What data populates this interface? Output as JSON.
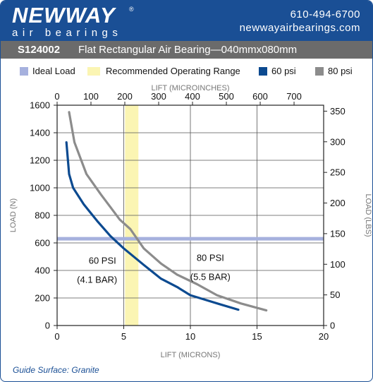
{
  "header": {
    "brand_name": "NEWWAY",
    "brand_reg": "®",
    "brand_tagline": "air bearings",
    "phone": "610-494-6700",
    "website": "newwayairbearings.com"
  },
  "title": {
    "code": "S124002",
    "description": "Flat Rectangular Air Bearing—040mmx080mm"
  },
  "footnote": "Guide Surface: Granite",
  "colors": {
    "brand_blue": "#1a4f95",
    "ideal_load": "#a6b1de",
    "recommended_range": "#fbf5b3",
    "psi60": "#0c4a90",
    "psi80": "#8c8c8c"
  },
  "chart_data": {
    "type": "line",
    "legend": {
      "placement": "top",
      "items": [
        "Ideal Load",
        "Recommended Operating Range",
        "60 psi",
        "80 psi"
      ]
    },
    "x_bottom": {
      "label": "LIFT (MICRONS)",
      "range": [
        0,
        20
      ],
      "ticks": [
        0,
        5,
        10,
        15,
        20
      ]
    },
    "x_top": {
      "label": "LIFT (MICROINCHES)",
      "range": [
        0,
        787.4
      ],
      "ticks": [
        0,
        100,
        200,
        300,
        400,
        500,
        600,
        700
      ]
    },
    "y_left": {
      "label": "LOAD (N)",
      "range": [
        0,
        1600
      ],
      "ticks": [
        0,
        200,
        400,
        600,
        800,
        1000,
        1200,
        1400,
        1600
      ]
    },
    "y_right": {
      "label": "LOAD (LBS)",
      "range": [
        0,
        359.7
      ],
      "ticks": [
        0,
        50,
        100,
        150,
        200,
        250,
        300,
        350
      ]
    },
    "grid": true,
    "ideal_load_n": 630,
    "recommended_range_microns": [
      5.1,
      6.1
    ],
    "series": [
      {
        "name": "60 psi",
        "x": [
          0.7,
          0.9,
          1.2,
          2.0,
          3.0,
          4.0,
          5.0,
          6.5,
          7.8,
          9.0,
          10.0,
          11.0,
          12.2,
          13.6
        ],
        "y": [
          1330,
          1100,
          1000,
          880,
          760,
          650,
          560,
          440,
          340,
          280,
          220,
          190,
          155,
          115
        ]
      },
      {
        "name": "80 psi",
        "x": [
          0.9,
          1.3,
          2.2,
          3.3,
          4.0,
          4.7,
          5.5,
          6.5,
          7.8,
          9.0,
          10.5,
          12.0,
          13.8,
          15.7
        ],
        "y": [
          1550,
          1330,
          1100,
          950,
          860,
          770,
          700,
          560,
          450,
          370,
          300,
          220,
          160,
          110
        ]
      }
    ],
    "annotations": [
      {
        "text": "60 PSI",
        "x": 3.4,
        "y": 450
      },
      {
        "text": "(4.1 BAR)",
        "x": 3.0,
        "y": 310
      },
      {
        "text": "80 PSI",
        "x": 11.5,
        "y": 470
      },
      {
        "text": "(5.5 BAR)",
        "x": 11.5,
        "y": 330
      }
    ]
  }
}
